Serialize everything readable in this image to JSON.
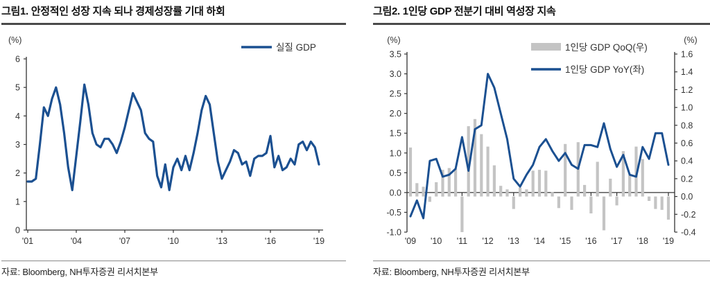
{
  "colors": {
    "navy": "#1b5091",
    "bar_gray": "#c4c4c4",
    "axis": "#333333",
    "axis_text": "#333333",
    "title_text": "#111111",
    "title_rule": "#4a4a4a",
    "footer_rule": "#8a8a8a"
  },
  "figure1": {
    "title": "그림1. 안정적인 성장 지속 되나 경제성장률 기대 하회",
    "source": "자료: Bloomberg, NH투자증권 리서치본부"
  },
  "figure2": {
    "title": "그림2. 1인당 GDP 전분기 대비 역성장 지속",
    "source": "자료: Bloomberg, NH투자증권 리서치본부"
  },
  "chart_data": [
    {
      "type": "line",
      "title": "그림1. 안정적인 성장 지속 되나 경제성장률 기대 하회",
      "unit": "(%)",
      "ylabel": "",
      "xlabel": "",
      "ylim": [
        0,
        6
      ],
      "yticks": [
        6,
        5,
        4,
        3,
        2,
        1,
        0
      ],
      "ytick_labels": [
        "6",
        "5",
        "4",
        "3",
        "2",
        "1",
        "0"
      ],
      "xticks": [
        0,
        12,
        24,
        36,
        48,
        60,
        72
      ],
      "xtick_labels": [
        "'01",
        "'04",
        "'07",
        "'10",
        "'13",
        "'16",
        "'19"
      ],
      "x_start": "2001Q1",
      "x_end": "2019Q1",
      "x_freq": "quarterly",
      "grid": false,
      "legend_position": "top-right",
      "series": [
        {
          "name": "실질 GDP",
          "swatch": "line",
          "values": [
            1.7,
            1.7,
            1.8,
            3.0,
            4.3,
            4.0,
            4.6,
            5.0,
            4.4,
            3.4,
            2.2,
            1.4,
            2.6,
            3.8,
            5.1,
            4.4,
            3.4,
            3.0,
            2.9,
            3.2,
            3.2,
            3.0,
            2.7,
            3.1,
            3.6,
            4.2,
            4.8,
            4.5,
            4.2,
            3.4,
            3.2,
            3.1,
            1.9,
            1.5,
            2.3,
            1.4,
            2.2,
            2.5,
            2.1,
            2.6,
            2.1,
            2.7,
            3.4,
            4.2,
            4.7,
            4.4,
            3.4,
            2.4,
            1.8,
            2.1,
            2.4,
            2.8,
            2.7,
            2.3,
            2.4,
            1.9,
            2.5,
            2.6,
            2.6,
            2.7,
            3.3,
            2.2,
            2.6,
            2.1,
            2.2,
            2.5,
            2.3,
            3.0,
            3.1,
            2.8,
            3.1,
            2.9,
            2.3
          ]
        }
      ]
    },
    {
      "type": "bar+line",
      "title": "그림2. 1인당 GDP 전분기 대비 역성장 지속",
      "unit_left": "(%)",
      "unit_right": "(%)",
      "left_ylim": [
        -1.0,
        3.5
      ],
      "left_yticks": [
        3.5,
        3.0,
        2.5,
        2.0,
        1.5,
        1.0,
        0.5,
        0.0,
        -0.5,
        -1.0
      ],
      "left_ytick_labels": [
        "3.5",
        "3.0",
        "2.5",
        "2.0",
        "1.5",
        "1.0",
        "0.5",
        "0.0",
        "-0.5",
        "-1.0"
      ],
      "right_ylim": [
        -0.4,
        1.6
      ],
      "right_yticks": [
        1.6,
        1.4,
        1.2,
        1.0,
        0.8,
        0.6,
        0.4,
        0.2,
        0.0,
        -0.2,
        -0.4
      ],
      "right_ytick_labels": [
        "1.6",
        "1.4",
        "1.2",
        "1.0",
        "0.8",
        "0.6",
        "0.4",
        "0.2",
        "0.0",
        "-0.2",
        "-0.4"
      ],
      "xticks": [
        0,
        4,
        8,
        12,
        16,
        20,
        24,
        28,
        32,
        36,
        40
      ],
      "xtick_labels": [
        "'09",
        "'10",
        "'11",
        "'12",
        "'13",
        "'14",
        "'15",
        "'16",
        "'17",
        "'18",
        "'19"
      ],
      "x_start": "2009Q1",
      "x_end": "2019Q1",
      "x_freq": "quarterly",
      "grid": false,
      "legend_position": "top-right",
      "series": [
        {
          "name": "1인당 GDP QoQ(우)",
          "swatch": "bar",
          "axis": "right",
          "values": [
            0.55,
            0.15,
            0.11,
            -0.06,
            0.16,
            0.3,
            0.32,
            0.31,
            -0.4,
            0.79,
            0.87,
            0.7,
            0.56,
            0.35,
            0.12,
            0.08,
            -0.14,
            0.1,
            0.08,
            0.29,
            0.3,
            0.29,
            0.05,
            -0.13,
            0.59,
            -0.15,
            0.61,
            0.13,
            -0.19,
            0.39,
            -0.38,
            0.2,
            -0.1,
            0.51,
            0.24,
            0.56,
            0.42,
            -0.05,
            -0.14,
            -0.15,
            -0.26
          ]
        },
        {
          "name": "1인당 GDP YoY(좌)",
          "swatch": "line",
          "axis": "left",
          "values": [
            -0.6,
            -0.2,
            -0.65,
            0.8,
            0.85,
            0.4,
            0.45,
            0.6,
            1.4,
            0.55,
            1.6,
            1.7,
            3.0,
            2.65,
            2.0,
            1.35,
            0.35,
            0.15,
            0.45,
            0.7,
            1.15,
            1.35,
            1.05,
            0.8,
            1.0,
            0.7,
            0.6,
            1.2,
            1.2,
            1.15,
            1.75,
            1.1,
            0.65,
            0.95,
            0.45,
            0.4,
            1.15,
            0.85,
            1.5,
            1.5,
            0.7
          ]
        }
      ]
    }
  ]
}
